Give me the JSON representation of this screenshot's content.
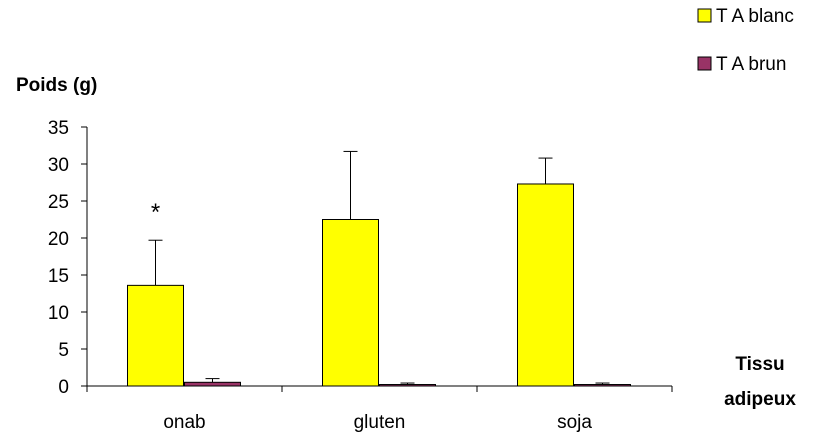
{
  "chart_data": {
    "type": "bar",
    "ylabel": "Poids (g)",
    "xlabel_lines": [
      "Tissu",
      "adipeux"
    ],
    "categories": [
      "onab",
      "gluten",
      "soja"
    ],
    "ylim": [
      0,
      35
    ],
    "yticks": [
      0,
      5,
      10,
      15,
      20,
      25,
      30,
      35
    ],
    "grid": false,
    "legend_position": "top-right",
    "series": [
      {
        "name": "T A blanc",
        "color": "#FFFF00",
        "values": [
          13.6,
          22.5,
          27.3
        ],
        "error": [
          6.1,
          9.2,
          3.5
        ]
      },
      {
        "name": "T A brun",
        "color": "#993366",
        "values": [
          0.5,
          0.2,
          0.2
        ],
        "error": [
          0.5,
          0.2,
          0.2
        ]
      }
    ],
    "annotations": [
      {
        "text": "*",
        "category": "onab",
        "series": "T A blanc"
      }
    ]
  }
}
